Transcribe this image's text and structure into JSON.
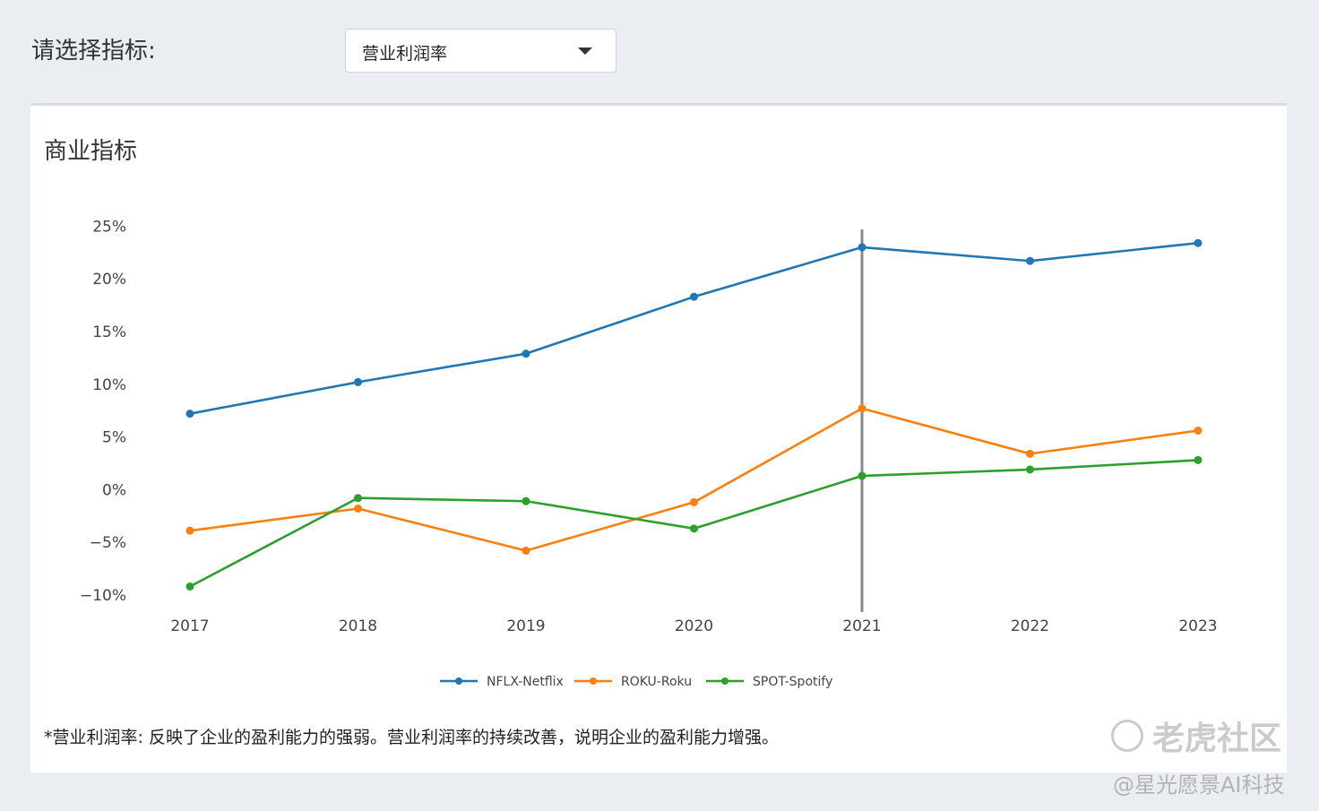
{
  "selector": {
    "label": "请选择指标:",
    "selected": "营业利润率"
  },
  "card": {
    "title": "商业指标",
    "note": "*营业利润率: 反映了企业的盈利能力的强弱。营业利润率的持续改善，说明企业的盈利能力增强。"
  },
  "watermark": {
    "line1": "老虎社区",
    "line2": "@星光愿景AI科技"
  },
  "chart_data": {
    "type": "line",
    "title": "",
    "xlabel": "",
    "ylabel": "",
    "categories": [
      "2017",
      "2018",
      "2019",
      "2020",
      "2021",
      "2022",
      "2023"
    ],
    "yticks": [
      "−10%",
      "−5%",
      "0%",
      "5%",
      "10%",
      "15%",
      "20%",
      "25%"
    ],
    "ytick_values": [
      -10,
      -5,
      0,
      5,
      10,
      15,
      20,
      25
    ],
    "ylim": [
      -11.2,
      25.8
    ],
    "hover_category": "2021",
    "legend_position": "bottom-center",
    "grid": false,
    "series": [
      {
        "name": "NFLX-Netflix",
        "color": "#1f77b4",
        "values": [
          7.2,
          10.2,
          12.9,
          18.3,
          23.0,
          21.7,
          23.4
        ]
      },
      {
        "name": "ROKU-Roku",
        "color": "#ff7f0e",
        "values": [
          -3.9,
          -1.8,
          -5.8,
          -1.2,
          7.7,
          3.4,
          5.6
        ]
      },
      {
        "name": "SPOT-Spotify",
        "color": "#2ca02c",
        "values": [
          -9.2,
          -0.8,
          -1.1,
          -3.7,
          1.3,
          1.9,
          2.8
        ]
      }
    ]
  }
}
